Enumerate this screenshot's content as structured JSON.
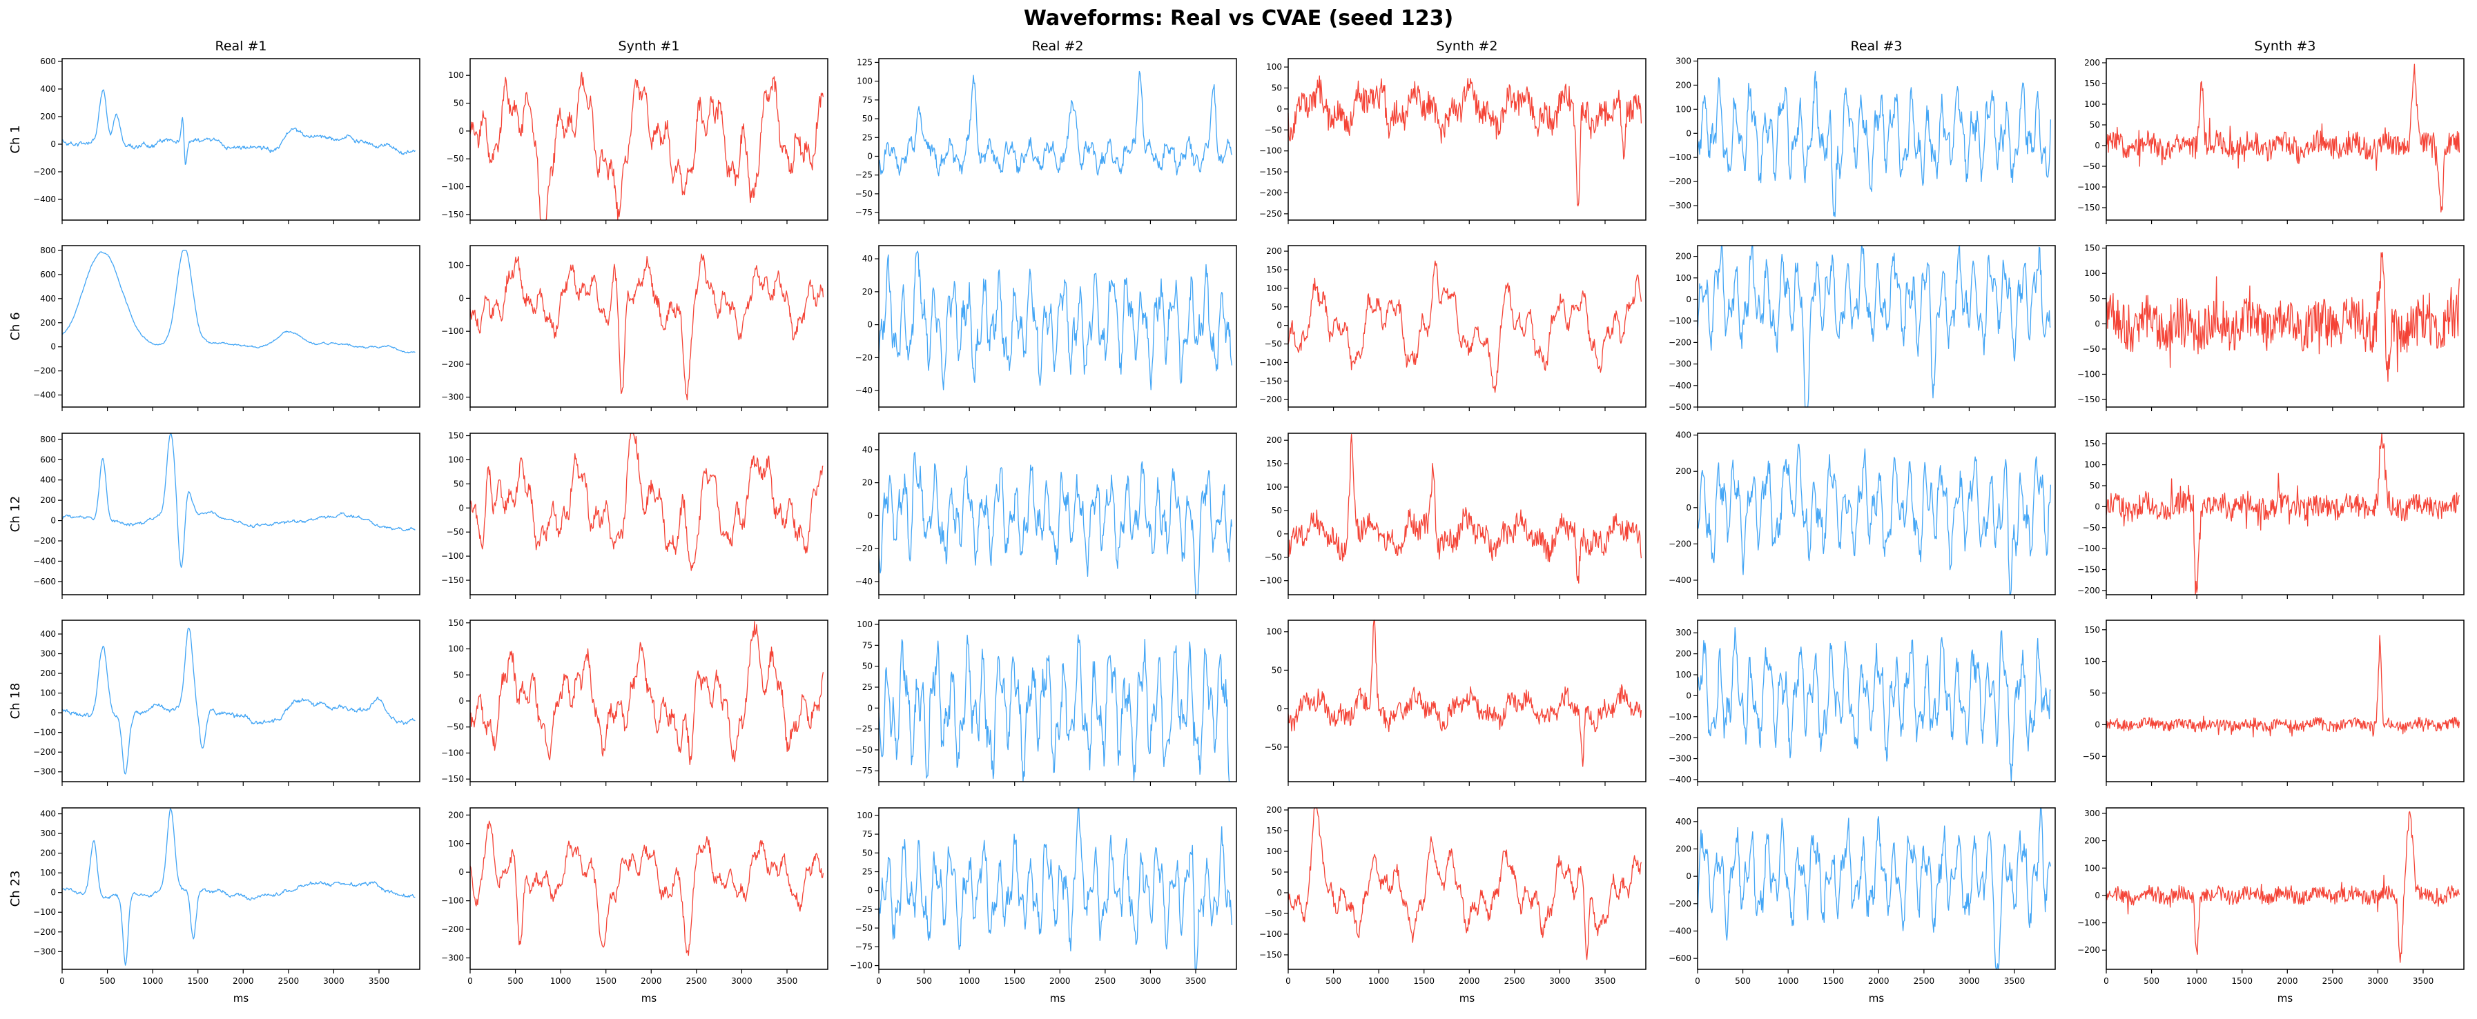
{
  "figure": {
    "title": "Waveforms: Real vs CVAE (seed 123)",
    "colors": {
      "real": "#42a5f5",
      "synth": "#f44336"
    }
  },
  "chart_data": {
    "type": "line",
    "title": "Waveforms: Real vs CVAE (seed 123)",
    "xlabel": "ms",
    "xlim": [
      0,
      3950
    ],
    "x_ticks": [
      0,
      500,
      1000,
      1500,
      2000,
      2500,
      3000,
      3500
    ],
    "columns": [
      {
        "name": "Real #1",
        "kind": "real",
        "seed": 11
      },
      {
        "name": "Synth #1",
        "kind": "synth",
        "seed": 23
      },
      {
        "name": "Real #2",
        "kind": "real",
        "seed": 37
      },
      {
        "name": "Synth #2",
        "kind": "synth",
        "seed": 41
      },
      {
        "name": "Real #3",
        "kind": "real",
        "seed": 53
      },
      {
        "name": "Synth #3",
        "kind": "synth",
        "seed": 67
      }
    ],
    "rows": [
      "Ch 1",
      "Ch 6",
      "Ch 12",
      "Ch 18",
      "Ch 23"
    ],
    "panels": [
      [
        {
          "ylim": [
            -550,
            620
          ],
          "yticks": [
            -400,
            -200,
            0,
            200,
            400,
            600
          ],
          "style": "slow",
          "amp": 90,
          "spikes": [
            [
              450,
              420,
              60
            ],
            [
              600,
              280,
              60
            ],
            [
              1340,
              540,
              25
            ],
            [
              1350,
              -500,
              25
            ],
            [
              2550,
              150,
              140
            ]
          ]
        },
        {
          "ylim": [
            -160,
            130
          ],
          "yticks": [
            -150,
            -100,
            -50,
            0,
            50,
            100
          ],
          "style": "mid",
          "amp": 60,
          "spikes": [
            [
              180,
              70,
              60
            ],
            [
              800,
              -110,
              70
            ],
            [
              1620,
              -100,
              80
            ],
            [
              2430,
              -130,
              70
            ],
            [
              3120,
              -140,
              60
            ]
          ]
        },
        {
          "ylim": [
            -85,
            130
          ],
          "yticks": [
            -75,
            -50,
            -25,
            0,
            25,
            50,
            75,
            100,
            125
          ],
          "style": "peaks",
          "amp": 15,
          "spikes": [
            [
              450,
              70,
              50
            ],
            [
              1050,
              90,
              45
            ],
            [
              2150,
              70,
              50
            ],
            [
              2880,
              120,
              40
            ],
            [
              3700,
              90,
              40
            ]
          ]
        },
        {
          "ylim": [
            -265,
            120
          ],
          "yticks": [
            -250,
            -200,
            -150,
            -100,
            -50,
            0,
            50,
            100
          ],
          "style": "noisy",
          "amp": 40,
          "spikes": [
            [
              1050,
              90,
              30
            ],
            [
              3200,
              -240,
              30
            ],
            [
              3700,
              -140,
              30
            ]
          ]
        },
        {
          "ylim": [
            -360,
            310
          ],
          "yticks": [
            -300,
            -200,
            -100,
            0,
            100,
            200,
            300
          ],
          "style": "osc",
          "amp": 140,
          "spikes": [
            [
              1500,
              -310,
              30
            ],
            [
              2500,
              -200,
              40
            ]
          ]
        },
        {
          "ylim": [
            -180,
            210
          ],
          "yticks": [
            -150,
            -100,
            -50,
            0,
            50,
            100,
            150,
            200
          ],
          "style": "spiky",
          "amp": 25,
          "spikes": [
            [
              1050,
              170,
              30
            ],
            [
              3400,
              180,
              35
            ],
            [
              3700,
              -150,
              30
            ]
          ]
        }
      ],
      [
        {
          "ylim": [
            -500,
            840
          ],
          "yticks": [
            -400,
            -200,
            0,
            200,
            400,
            600,
            800
          ],
          "style": "sat",
          "amp": 40,
          "spikes": [
            [
              450,
              800,
              300
            ],
            [
              1350,
              800,
              120
            ],
            [
              2500,
              150,
              200
            ]
          ]
        },
        {
          "ylim": [
            -330,
            160
          ],
          "yticks": [
            -300,
            -200,
            -100,
            0,
            100
          ],
          "style": "mid",
          "amp": 70,
          "spikes": [
            [
              1580,
              140,
              50
            ],
            [
              1680,
              -300,
              40
            ],
            [
              2400,
              -230,
              60
            ]
          ]
        },
        {
          "ylim": [
            -50,
            48
          ],
          "yticks": [
            -40,
            -20,
            0,
            20,
            40
          ],
          "style": "osc",
          "amp": 22,
          "spikes": [
            [
              400,
              40,
              30
            ],
            [
              2600,
              40,
              30
            ]
          ]
        },
        {
          "ylim": [
            -220,
            215
          ],
          "yticks": [
            -200,
            -150,
            -100,
            -50,
            0,
            50,
            100,
            150,
            200
          ],
          "style": "mid",
          "amp": 70,
          "spikes": [
            [
              1630,
              190,
              40
            ],
            [
              2300,
              -190,
              50
            ]
          ]
        },
        {
          "ylim": [
            -500,
            250
          ],
          "yticks": [
            -500,
            -400,
            -300,
            -200,
            -100,
            0,
            100,
            200
          ],
          "style": "osc",
          "amp": 160,
          "spikes": [
            [
              1200,
              -400,
              40
            ],
            [
              2600,
              -300,
              40
            ]
          ]
        },
        {
          "ylim": [
            -165,
            155
          ],
          "yticks": [
            -150,
            -100,
            -50,
            0,
            50,
            100,
            150
          ],
          "style": "spiky",
          "amp": 40,
          "spikes": [
            [
              3050,
              130,
              40
            ],
            [
              3100,
              -140,
              30
            ]
          ]
        }
      ],
      [
        {
          "ylim": [
            -730,
            860
          ],
          "yticks": [
            -600,
            -400,
            -200,
            0,
            200,
            400,
            600,
            800
          ],
          "style": "slow",
          "amp": 80,
          "spikes": [
            [
              450,
              600,
              50
            ],
            [
              1200,
              780,
              60
            ],
            [
              1320,
              -650,
              50
            ],
            [
              1380,
              300,
              60
            ]
          ]
        },
        {
          "ylim": [
            -180,
            155
          ],
          "yticks": [
            -150,
            -100,
            -50,
            0,
            50,
            100,
            150
          ],
          "style": "mid",
          "amp": 60,
          "spikes": [
            [
              200,
              130,
              50
            ],
            [
              1800,
              120,
              50
            ],
            [
              2450,
              -160,
              60
            ],
            [
              3120,
              140,
              50
            ]
          ]
        },
        {
          "ylim": [
            -48,
            50
          ],
          "yticks": [
            -40,
            -20,
            0,
            20,
            40
          ],
          "style": "osc",
          "amp": 20,
          "spikes": [
            [
              400,
              45,
              30
            ],
            [
              3500,
              -45,
              30
            ]
          ]
        },
        {
          "ylim": [
            -130,
            215
          ],
          "yticks": [
            -100,
            -50,
            0,
            50,
            100,
            150,
            200
          ],
          "style": "noisy",
          "amp": 30,
          "spikes": [
            [
              700,
              180,
              30
            ],
            [
              1600,
              150,
              30
            ],
            [
              3200,
              -120,
              30
            ]
          ]
        },
        {
          "ylim": [
            -480,
            410
          ],
          "yticks": [
            -400,
            -200,
            0,
            200,
            400
          ],
          "style": "osc",
          "amp": 200,
          "spikes": [
            [
              1000,
              380,
              30
            ],
            [
              3450,
              -450,
              30
            ]
          ]
        },
        {
          "ylim": [
            -210,
            175
          ],
          "yticks": [
            -200,
            -150,
            -100,
            -50,
            0,
            50,
            100,
            150
          ],
          "style": "spiky",
          "amp": 25,
          "spikes": [
            [
              1000,
              -190,
              30
            ],
            [
              3050,
              150,
              40
            ]
          ]
        }
      ],
      [
        {
          "ylim": [
            -350,
            470
          ],
          "yticks": [
            -300,
            -200,
            -100,
            0,
            100,
            200,
            300,
            400
          ],
          "style": "slow",
          "amp": 60,
          "spikes": [
            [
              450,
              350,
              70
            ],
            [
              700,
              -300,
              50
            ],
            [
              1400,
              420,
              60
            ],
            [
              1550,
              -200,
              50
            ],
            [
              2600,
              80,
              150
            ],
            [
              3500,
              90,
              100
            ]
          ]
        },
        {
          "ylim": [
            -155,
            155
          ],
          "yticks": [
            -150,
            -100,
            -50,
            0,
            50,
            100,
            150
          ],
          "style": "mid",
          "amp": 60,
          "spikes": [
            [
              2450,
              -140,
              50
            ],
            [
              3150,
              140,
              50
            ]
          ]
        },
        {
          "ylim": [
            -88,
            105
          ],
          "yticks": [
            -75,
            -50,
            -25,
            0,
            25,
            50,
            75,
            100
          ],
          "style": "osc",
          "amp": 55,
          "spikes": [
            [
              3900,
              -85,
              30
            ]
          ]
        },
        {
          "ylim": [
            -95,
            115
          ],
          "yticks": [
            -50,
            0,
            50,
            100
          ],
          "style": "noisy",
          "amp": 15,
          "spikes": [
            [
              950,
              110,
              25
            ],
            [
              3250,
              -80,
              25
            ]
          ]
        },
        {
          "ylim": [
            -410,
            360
          ],
          "yticks": [
            -400,
            -300,
            -200,
            -100,
            0,
            100,
            200,
            300
          ],
          "style": "osc",
          "amp": 180,
          "spikes": [
            [
              3350,
              320,
              30
            ],
            [
              3450,
              -380,
              30
            ]
          ]
        },
        {
          "ylim": [
            -90,
            165
          ],
          "yticks": [
            -50,
            0,
            50,
            100,
            150
          ],
          "style": "spiky",
          "amp": 8,
          "spikes": [
            [
              3030,
              155,
              30
            ],
            [
              3050,
              -70,
              25
            ]
          ]
        }
      ],
      [
        {
          "ylim": [
            -390,
            430
          ],
          "yticks": [
            -300,
            -200,
            -100,
            0,
            100,
            200,
            300,
            400
          ],
          "style": "slow",
          "amp": 50,
          "spikes": [
            [
              350,
              280,
              50
            ],
            [
              700,
              -350,
              40
            ],
            [
              1200,
              400,
              60
            ],
            [
              1450,
              -250,
              40
            ]
          ]
        },
        {
          "ylim": [
            -340,
            225
          ],
          "yticks": [
            -300,
            -200,
            -100,
            0,
            100,
            200
          ],
          "style": "mid",
          "amp": 70,
          "spikes": [
            [
              200,
              200,
              60
            ],
            [
              550,
              -320,
              50
            ],
            [
              1450,
              -260,
              50
            ],
            [
              2400,
              -280,
              50
            ]
          ]
        },
        {
          "ylim": [
            -105,
            110
          ],
          "yticks": [
            -100,
            -75,
            -50,
            -25,
            0,
            25,
            50,
            75,
            100
          ],
          "style": "osc",
          "amp": 45,
          "spikes": [
            [
              2200,
              100,
              20
            ],
            [
              3500,
              -90,
              20
            ]
          ]
        },
        {
          "ylim": [
            -185,
            205
          ],
          "yticks": [
            -150,
            -100,
            -50,
            0,
            50,
            100,
            150,
            200
          ],
          "style": "mid",
          "amp": 60,
          "spikes": [
            [
              300,
              170,
              40
            ],
            [
              1600,
              120,
              50
            ],
            [
              3300,
              -170,
              30
            ]
          ]
        },
        {
          "ylim": [
            -680,
            500
          ],
          "yticks": [
            -600,
            -400,
            -200,
            0,
            200,
            400
          ],
          "style": "osc",
          "amp": 250,
          "spikes": [
            [
              3300,
              -620,
              30
            ],
            [
              3800,
              450,
              30
            ]
          ]
        },
        {
          "ylim": [
            -270,
            320
          ],
          "yticks": [
            -200,
            -100,
            0,
            100,
            200,
            300
          ],
          "style": "spiky",
          "amp": 25,
          "spikes": [
            [
              3350,
              290,
              50
            ],
            [
              3250,
              -230,
              30
            ],
            [
              1000,
              -200,
              25
            ]
          ]
        }
      ]
    ]
  }
}
